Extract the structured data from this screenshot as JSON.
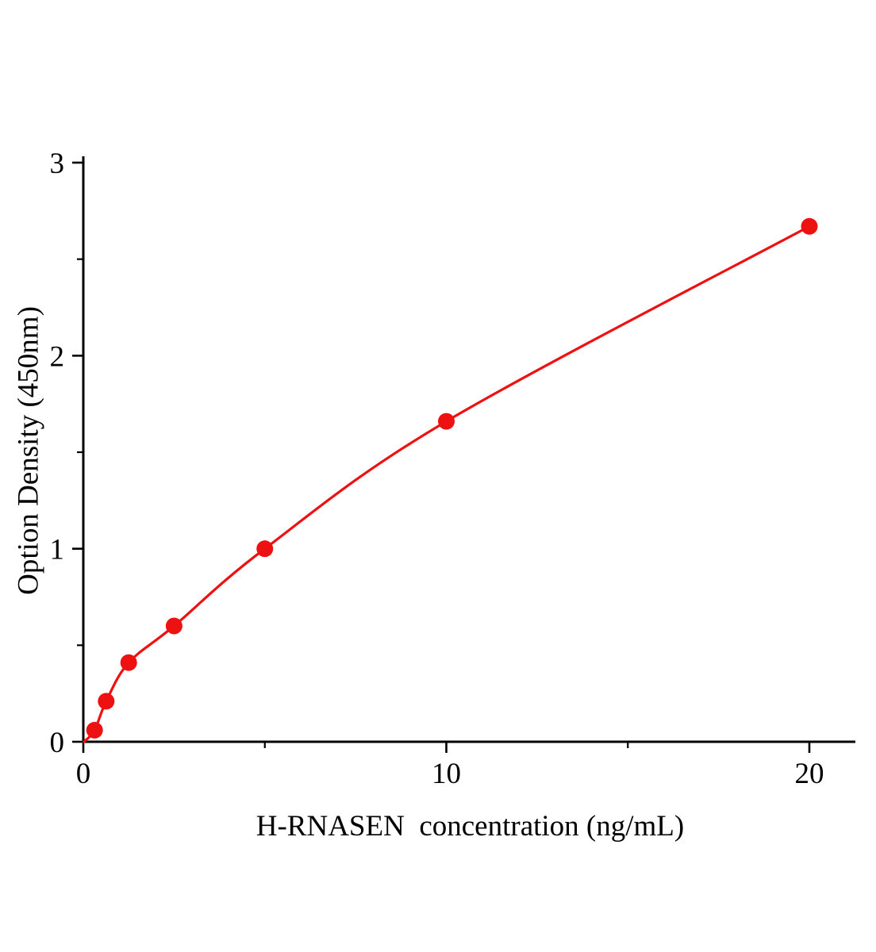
{
  "chart_data": {
    "type": "scatter",
    "title": "",
    "xlabel": "H-RNASEN  concentration (ng/mL)",
    "ylabel": "Option Density (450nm)",
    "x": [
      0.31,
      0.63,
      1.25,
      2.5,
      5,
      10,
      20
    ],
    "y": [
      0.06,
      0.21,
      0.41,
      0.6,
      1.0,
      1.66,
      2.67
    ],
    "curve_start": [
      0.02,
      0.0
    ],
    "xlim": [
      0,
      20
    ],
    "ylim": [
      0,
      3
    ],
    "x_major_ticks": [
      0,
      10,
      20
    ],
    "x_minor_ticks": [
      5,
      15
    ],
    "y_major_ticks": [
      0,
      1,
      2,
      3
    ],
    "y_minor_ticks": [
      0.5,
      1.5,
      2.5
    ],
    "grid": false,
    "legend": null,
    "line_color": "#ee1111",
    "point_color": "#ee1111",
    "axis_color": "#000000"
  }
}
